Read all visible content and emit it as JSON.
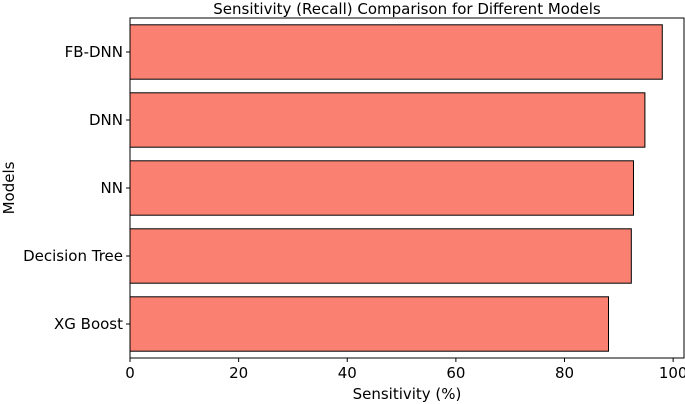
{
  "chart_data": {
    "type": "bar",
    "orientation": "horizontal",
    "title": "Sensitivity (Recall) Comparison for Different Models",
    "xlabel": "Sensitivity (%)",
    "ylabel": "Models",
    "categories": [
      "FB-DNN",
      "DNN",
      "NN",
      "Decision Tree",
      "XG Boost"
    ],
    "values": [
      98.0,
      94.8,
      92.7,
      92.3,
      88.1
    ],
    "xlim": [
      0,
      102
    ],
    "xticks": [
      0,
      20,
      40,
      60,
      80,
      100
    ],
    "bar_color": "#fa8072",
    "grid": false,
    "legend": "none"
  }
}
